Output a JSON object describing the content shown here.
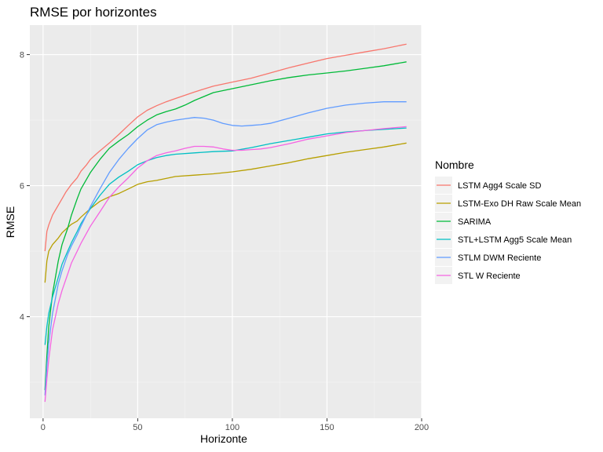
{
  "chart_data": {
    "type": "line",
    "title": "RMSE por horizontes",
    "xlabel": "Horizonte",
    "ylabel": "RMSE",
    "xlim": [
      -7,
      200
    ],
    "ylim": [
      2.45,
      8.45
    ],
    "xticks": [
      0,
      50,
      100,
      150,
      200
    ],
    "yticks": [
      4,
      6,
      8
    ],
    "grid": true,
    "background": "#EBEBEB",
    "legend": {
      "title": "Nombre",
      "position": "right"
    },
    "series": [
      {
        "name": "LSTM Agg4 Scale SD",
        "color": "#F8766D",
        "x": [
          1,
          2,
          3,
          5,
          7,
          10,
          12,
          15,
          18,
          20,
          23,
          25,
          28,
          30,
          35,
          40,
          45,
          50,
          55,
          60,
          65,
          70,
          80,
          90,
          100,
          110,
          120,
          130,
          140,
          150,
          160,
          170,
          180,
          192
        ],
        "y": [
          5.0,
          5.3,
          5.4,
          5.55,
          5.65,
          5.8,
          5.9,
          6.02,
          6.12,
          6.22,
          6.32,
          6.4,
          6.48,
          6.53,
          6.65,
          6.78,
          6.92,
          7.05,
          7.15,
          7.22,
          7.28,
          7.33,
          7.43,
          7.52,
          7.58,
          7.64,
          7.72,
          7.8,
          7.87,
          7.94,
          7.99,
          8.04,
          8.09,
          8.16
        ]
      },
      {
        "name": "LSTM-Exo DH Raw Scale Mean",
        "color": "#B79F00",
        "x": [
          1,
          2,
          3,
          5,
          8,
          10,
          13,
          15,
          18,
          20,
          25,
          30,
          35,
          40,
          45,
          50,
          55,
          60,
          65,
          70,
          80,
          90,
          100,
          110,
          120,
          130,
          140,
          150,
          160,
          170,
          180,
          192
        ],
        "y": [
          4.52,
          4.85,
          5.0,
          5.1,
          5.2,
          5.28,
          5.36,
          5.41,
          5.46,
          5.52,
          5.65,
          5.76,
          5.83,
          5.88,
          5.95,
          6.02,
          6.06,
          6.08,
          6.11,
          6.14,
          6.16,
          6.18,
          6.21,
          6.25,
          6.3,
          6.35,
          6.41,
          6.46,
          6.51,
          6.55,
          6.59,
          6.65
        ]
      },
      {
        "name": "SARIMA",
        "color": "#00BA38",
        "x": [
          1,
          2,
          3,
          5,
          8,
          10,
          13,
          15,
          18,
          20,
          25,
          30,
          35,
          40,
          45,
          50,
          55,
          60,
          65,
          70,
          75,
          80,
          90,
          100,
          110,
          120,
          130,
          140,
          150,
          160,
          170,
          180,
          192
        ],
        "y": [
          2.88,
          3.4,
          3.85,
          4.35,
          4.85,
          5.1,
          5.35,
          5.55,
          5.8,
          5.95,
          6.2,
          6.4,
          6.57,
          6.68,
          6.78,
          6.9,
          7.0,
          7.08,
          7.13,
          7.17,
          7.23,
          7.3,
          7.42,
          7.48,
          7.54,
          7.6,
          7.65,
          7.69,
          7.72,
          7.75,
          7.79,
          7.83,
          7.89
        ]
      },
      {
        "name": "STL+LSTM Agg5 Scale Mean",
        "color": "#00BFC4",
        "x": [
          1,
          2,
          3,
          5,
          8,
          10,
          13,
          15,
          18,
          20,
          25,
          30,
          35,
          40,
          45,
          50,
          55,
          60,
          65,
          70,
          80,
          90,
          100,
          110,
          120,
          130,
          140,
          150,
          160,
          170,
          180,
          192
        ],
        "y": [
          3.57,
          3.85,
          4.05,
          4.3,
          4.6,
          4.8,
          5.0,
          5.13,
          5.3,
          5.42,
          5.65,
          5.85,
          6.02,
          6.13,
          6.22,
          6.32,
          6.38,
          6.43,
          6.46,
          6.48,
          6.5,
          6.52,
          6.53,
          6.58,
          6.64,
          6.69,
          6.74,
          6.79,
          6.82,
          6.84,
          6.86,
          6.88
        ]
      },
      {
        "name": "STLM DWM Reciente",
        "color": "#619CFF",
        "x": [
          1,
          2,
          3,
          5,
          8,
          10,
          13,
          15,
          18,
          20,
          25,
          30,
          35,
          40,
          45,
          50,
          55,
          60,
          65,
          70,
          75,
          80,
          85,
          90,
          95,
          100,
          105,
          110,
          115,
          120,
          130,
          140,
          150,
          160,
          170,
          180,
          192
        ],
        "y": [
          2.8,
          3.25,
          3.6,
          4.05,
          4.5,
          4.7,
          4.95,
          5.08,
          5.25,
          5.38,
          5.68,
          5.95,
          6.2,
          6.4,
          6.57,
          6.72,
          6.85,
          6.93,
          6.97,
          7.0,
          7.02,
          7.04,
          7.03,
          7.0,
          6.95,
          6.92,
          6.91,
          6.92,
          6.93,
          6.95,
          7.03,
          7.11,
          7.18,
          7.23,
          7.26,
          7.28,
          7.28
        ]
      },
      {
        "name": "STL W Reciente",
        "color": "#F564E3",
        "x": [
          1,
          2,
          3,
          5,
          8,
          10,
          13,
          15,
          18,
          20,
          25,
          30,
          35,
          40,
          45,
          50,
          55,
          60,
          65,
          70,
          75,
          80,
          85,
          90,
          95,
          100,
          105,
          110,
          115,
          120,
          130,
          140,
          150,
          160,
          170,
          180,
          192
        ],
        "y": [
          2.7,
          3.05,
          3.35,
          3.8,
          4.2,
          4.4,
          4.65,
          4.82,
          5.0,
          5.12,
          5.38,
          5.6,
          5.82,
          5.98,
          6.12,
          6.27,
          6.38,
          6.46,
          6.5,
          6.53,
          6.57,
          6.6,
          6.6,
          6.59,
          6.56,
          6.54,
          6.54,
          6.55,
          6.56,
          6.58,
          6.64,
          6.71,
          6.76,
          6.81,
          6.84,
          6.87,
          6.9
        ]
      }
    ]
  }
}
